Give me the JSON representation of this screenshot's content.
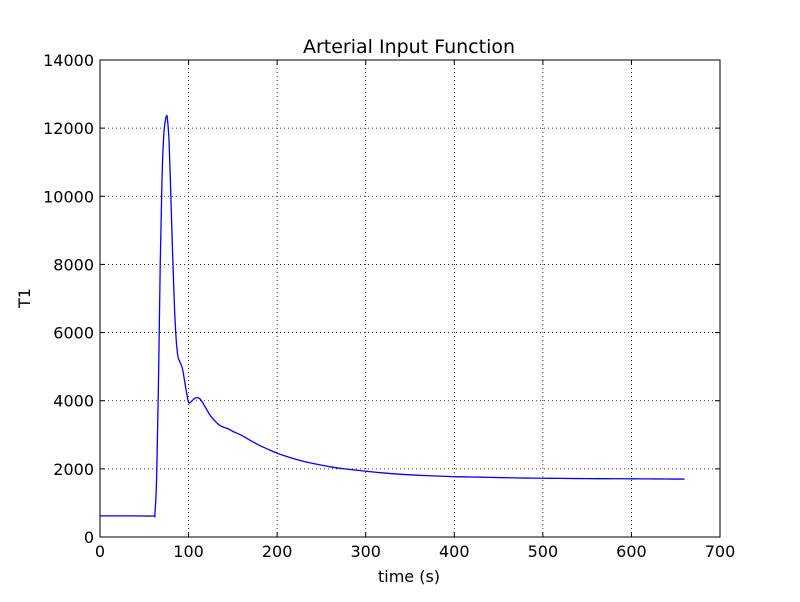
{
  "chart_data": {
    "type": "line",
    "title": "Arterial Input Function",
    "xlabel": "time (s)",
    "ylabel": "T1",
    "xlim": [
      0,
      700
    ],
    "ylim": [
      0,
      14000
    ],
    "xticks": [
      0,
      100,
      200,
      300,
      400,
      500,
      600,
      700
    ],
    "yticks": [
      0,
      2000,
      4000,
      6000,
      8000,
      10000,
      12000,
      14000
    ],
    "grid": true,
    "grid_style": "dotted",
    "colors": {
      "line": "#0000ff",
      "axes": "#000000",
      "grid": "#000000"
    },
    "series": [
      {
        "x": [
          0,
          20,
          40,
          60,
          62,
          64,
          66,
          68,
          70,
          72,
          74,
          75,
          76,
          78,
          80,
          82,
          84,
          86,
          88,
          90,
          93,
          96,
          98,
          100,
          102,
          104,
          106,
          108,
          110,
          112,
          114,
          116,
          118,
          120,
          125,
          130,
          135,
          140,
          145,
          150,
          160,
          170,
          180,
          190,
          200,
          210,
          220,
          230,
          240,
          250,
          260,
          270,
          280,
          290,
          300,
          320,
          340,
          360,
          380,
          400,
          420,
          440,
          460,
          480,
          500,
          520,
          540,
          560,
          580,
          600,
          620,
          640,
          660
        ],
        "values": [
          620,
          620,
          620,
          620,
          700,
          1800,
          4500,
          8000,
          10500,
          11800,
          12250,
          12350,
          12300,
          11600,
          10000,
          8300,
          6800,
          5800,
          5300,
          5150,
          4950,
          4500,
          4200,
          3950,
          3950,
          4000,
          4050,
          4080,
          4090,
          4070,
          4020,
          3940,
          3850,
          3760,
          3550,
          3400,
          3280,
          3220,
          3170,
          3100,
          2980,
          2830,
          2690,
          2570,
          2460,
          2370,
          2290,
          2220,
          2160,
          2110,
          2060,
          2020,
          1990,
          1960,
          1930,
          1880,
          1840,
          1810,
          1790,
          1770,
          1760,
          1750,
          1740,
          1730,
          1725,
          1720,
          1715,
          1712,
          1710,
          1708,
          1705,
          1702,
          1700
        ]
      }
    ]
  }
}
